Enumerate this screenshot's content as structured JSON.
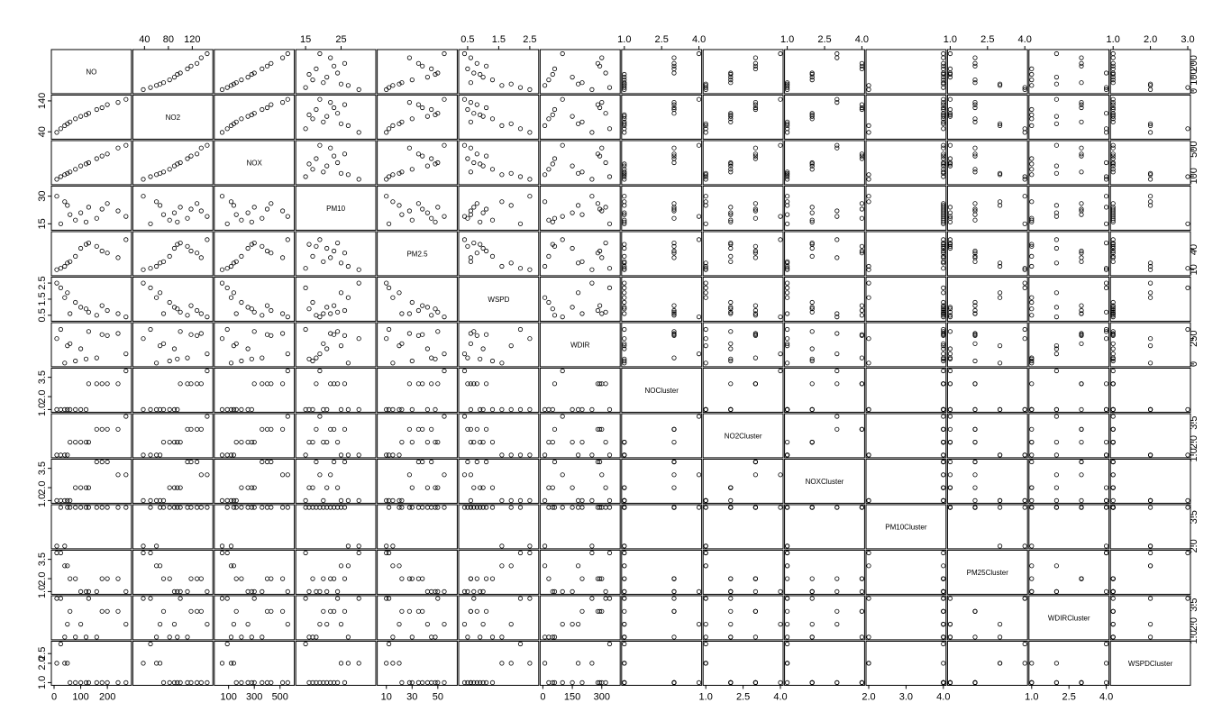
{
  "chart_data": {
    "type": "scatter",
    "title": "",
    "variables": [
      {
        "name": "NO",
        "min": 0,
        "max": 280,
        "ticks": [
          0,
          100,
          200
        ],
        "tick_labels": [
          "0",
          "100",
          "200"
        ]
      },
      {
        "name": "NO2",
        "min": 25,
        "max": 150,
        "ticks": [
          40,
          80,
          120
        ],
        "tick_labels": [
          "40",
          "80",
          "120"
        ]
      },
      {
        "name": "NOX",
        "min": 10,
        "max": 590,
        "ticks": [
          100,
          300,
          500
        ],
        "tick_labels": [
          "100",
          "300",
          "500"
        ]
      },
      {
        "name": "PM10",
        "min": 13,
        "max": 34,
        "ticks": [
          15,
          25
        ],
        "tick_labels": [
          "15",
          "25"
        ]
      },
      {
        "name": "PM2.5",
        "min": 5,
        "max": 63,
        "ticks": [
          10,
          30,
          50
        ],
        "tick_labels": [
          "10",
          "30",
          "50"
        ]
      },
      {
        "name": "WSPD",
        "min": 0.3,
        "max": 2.7,
        "ticks": [
          0.5,
          1.5,
          2.5
        ],
        "tick_labels": [
          "0.5",
          "1.5",
          "2.5"
        ]
      },
      {
        "name": "WDIR",
        "min": 0,
        "max": 380,
        "ticks": [
          0,
          150,
          300
        ],
        "tick_labels": [
          "0",
          "150",
          "300"
        ]
      },
      {
        "name": "NOCluster",
        "min": 1,
        "max": 4,
        "ticks": [
          1.0,
          2.5,
          4.0
        ],
        "tick_labels": [
          "1.0",
          "2.5",
          "4.0"
        ]
      },
      {
        "name": "NO2Cluster",
        "min": 1,
        "max": 4,
        "ticks": [
          1.0,
          2.5,
          4.0
        ],
        "tick_labels": [
          "1.0",
          "2.5",
          "4.0"
        ]
      },
      {
        "name": "NOXCluster",
        "min": 1,
        "max": 4,
        "ticks": [
          1.0,
          2.5,
          4.0
        ],
        "tick_labels": [
          "1.0",
          "2.5",
          "4.0"
        ]
      },
      {
        "name": "PM10Cluster",
        "min": 2,
        "max": 4,
        "ticks": [
          2.0,
          3.0,
          4.0
        ],
        "tick_labels": [
          "2.0",
          "3.0",
          "4.0"
        ]
      },
      {
        "name": "PM25Cluster",
        "min": 1,
        "max": 4,
        "ticks": [
          1.0,
          2.5,
          4.0
        ],
        "tick_labels": [
          "1.0",
          "2.5",
          "4.0"
        ]
      },
      {
        "name": "WDIRCluster",
        "min": 1,
        "max": 4,
        "ticks": [
          1.0,
          2.5,
          4.0
        ],
        "tick_labels": [
          "1.0",
          "2.5",
          "4.0"
        ]
      },
      {
        "name": "WSPDCluster",
        "min": 1,
        "max": 3,
        "ticks": [
          1.0,
          2.0,
          3.0
        ],
        "tick_labels": [
          "1.0",
          "2.0",
          "3.0"
        ]
      }
    ],
    "right_axis_labels": [
      {
        "var": "NO",
        "ticks": [
          0,
          100,
          200
        ],
        "tick_labels": [
          "0",
          "100",
          "200"
        ]
      },
      {
        "var": "NOX",
        "ticks": [
          100,
          500
        ],
        "tick_labels": [
          "100",
          "500"
        ]
      },
      {
        "var": "PM2.5",
        "ticks": [
          10,
          40
        ],
        "tick_labels": [
          "10",
          "40"
        ]
      },
      {
        "var": "WDIR",
        "ticks": [
          0,
          250
        ],
        "tick_labels": [
          "0",
          "250"
        ]
      },
      {
        "var": "NO2Cluster",
        "ticks": [
          1.0,
          2.0,
          3.5
        ],
        "tick_labels": [
          "1.0",
          "2.0",
          "3.5"
        ]
      },
      {
        "var": "PM10Cluster",
        "ticks": [
          2.0,
          3.5
        ],
        "tick_labels": [
          "2.0",
          "3.5"
        ]
      },
      {
        "var": "WDIRCluster",
        "ticks": [
          1.0,
          2.0,
          3.5
        ],
        "tick_labels": [
          "1.0",
          "2.0",
          "3.5"
        ]
      }
    ],
    "left_axis_labels": [
      {
        "var": "NO2",
        "ticks": [
          40,
          140
        ],
        "tick_labels": [
          "40",
          "140"
        ]
      },
      {
        "var": "PM10",
        "ticks": [
          15,
          30
        ],
        "tick_labels": [
          "15",
          "30"
        ]
      },
      {
        "var": "WSPD",
        "ticks": [
          0.5,
          1.5,
          2.5
        ],
        "tick_labels": [
          "0.5",
          "1.5",
          "2.5"
        ]
      },
      {
        "var": "NOCluster",
        "ticks": [
          1.0,
          2.0,
          3.5
        ],
        "tick_labels": [
          "1.0",
          "2.0",
          "3.5"
        ]
      },
      {
        "var": "NOXCluster",
        "ticks": [
          1.0,
          2.0,
          3.5
        ],
        "tick_labels": [
          "1.0",
          "2.0",
          "3.5"
        ]
      },
      {
        "var": "PM25Cluster",
        "ticks": [
          1.0,
          2.0,
          3.5
        ],
        "tick_labels": [
          "1.0",
          "2.0",
          "3.5"
        ]
      },
      {
        "var": "WSPDCluster",
        "ticks": [
          1.0,
          2.0,
          2.5
        ],
        "tick_labels": [
          "1.0",
          "2.0",
          "2.5"
        ]
      }
    ],
    "observations": [
      {
        "NO": 240,
        "NO2": 135,
        "NOX": 520,
        "PM10": 22,
        "PM2.5": 28,
        "WSPD": 0.6,
        "WDIR": 300,
        "NOCluster": 3,
        "NO2Cluster": 3,
        "NOXCluster": 3,
        "PM10Cluster": 4,
        "PM25Cluster": 2,
        "WDIRCluster": 3,
        "WSPDCluster": 1
      },
      {
        "NO": 200,
        "NO2": 128,
        "NOX": 430,
        "PM10": 26,
        "PM2.5": 35,
        "WSPD": 0.8,
        "WDIR": 280,
        "NOCluster": 3,
        "NO2Cluster": 3,
        "NOXCluster": 4,
        "PM10Cluster": 4,
        "PM25Cluster": 2,
        "WDIRCluster": 3,
        "WSPDCluster": 1
      },
      {
        "NO": 160,
        "NO2": 112,
        "NOX": 360,
        "PM10": 18,
        "PM2.5": 45,
        "WSPD": 0.5,
        "WDIR": 60,
        "NOCluster": 3,
        "NO2Cluster": 3,
        "NOXCluster": 4,
        "PM10Cluster": 4,
        "PM25Cluster": 1,
        "WDIRCluster": 1,
        "WSPDCluster": 1
      },
      {
        "NO": 130,
        "NO2": 100,
        "NOX": 300,
        "PM10": 24,
        "PM2.5": 50,
        "WSPD": 0.7,
        "WDIR": 320,
        "NOCluster": 3,
        "NO2Cluster": 2,
        "NOXCluster": 2,
        "PM10Cluster": 4,
        "PM25Cluster": 1,
        "WDIRCluster": 4,
        "WSPDCluster": 1
      },
      {
        "NO": 100,
        "NO2": 90,
        "NOX": 250,
        "PM10": 21,
        "PM2.5": 42,
        "WSPD": 1.0,
        "WDIR": 150,
        "NOCluster": 1,
        "NO2Cluster": 2,
        "NOXCluster": 2,
        "PM10Cluster": 4,
        "PM25Cluster": 1,
        "WDIRCluster": 2,
        "WSPDCluster": 1
      },
      {
        "NO": 80,
        "NO2": 82,
        "NOX": 200,
        "PM10": 17,
        "PM2.5": 30,
        "WSPD": 1.3,
        "WDIR": 30,
        "NOCluster": 1,
        "NO2Cluster": 2,
        "NOXCluster": 2,
        "PM10Cluster": 4,
        "PM25Cluster": 2,
        "WDIRCluster": 1,
        "WSPDCluster": 1
      },
      {
        "NO": 60,
        "NO2": 72,
        "NOX": 160,
        "PM10": 20,
        "PM2.5": 22,
        "WSPD": 0.6,
        "WDIR": 200,
        "NOCluster": 1,
        "NO2Cluster": 2,
        "NOXCluster": 1,
        "PM10Cluster": 4,
        "PM25Cluster": 2,
        "WDIRCluster": 3,
        "WSPDCluster": 1
      },
      {
        "NO": 40,
        "NO2": 60,
        "NOX": 120,
        "PM10": 27,
        "PM2.5": 15,
        "WSPD": 1.6,
        "WDIR": 10,
        "NOCluster": 1,
        "NO2Cluster": 1,
        "NOXCluster": 1,
        "PM10Cluster": 2,
        "PM25Cluster": 3,
        "WDIRCluster": 1,
        "WSPDCluster": 2
      },
      {
        "NO": 25,
        "NO2": 50,
        "NOX": 90,
        "PM10": 15,
        "PM2.5": 12,
        "WSPD": 2.2,
        "WDIR": 340,
        "NOCluster": 1,
        "NO2Cluster": 1,
        "NOXCluster": 1,
        "PM10Cluster": 4,
        "PM25Cluster": 4,
        "WDIRCluster": 4,
        "WSPDCluster": 3
      },
      {
        "NO": 10,
        "NO2": 38,
        "NOX": 50,
        "PM10": 30,
        "PM2.5": 10,
        "WSPD": 2.5,
        "WDIR": 250,
        "NOCluster": 1,
        "NO2Cluster": 1,
        "NOXCluster": 1,
        "PM10Cluster": 2,
        "PM25Cluster": 4,
        "WDIRCluster": 4,
        "WSPDCluster": 2
      },
      {
        "NO": 270,
        "NO2": 145,
        "NOX": 560,
        "PM10": 19,
        "PM2.5": 55,
        "WSPD": 0.4,
        "WDIR": 100,
        "NOCluster": 4,
        "NO2Cluster": 4,
        "NOXCluster": 3,
        "PM10Cluster": 4,
        "PM25Cluster": 1,
        "WDIRCluster": 2,
        "WSPDCluster": 1
      },
      {
        "NO": 180,
        "NO2": 118,
        "NOX": 400,
        "PM10": 23,
        "PM2.5": 38,
        "WSPD": 1.1,
        "WDIR": 290,
        "NOCluster": 3,
        "NO2Cluster": 3,
        "NOXCluster": 4,
        "PM10Cluster": 4,
        "PM25Cluster": 2,
        "WDIRCluster": 3,
        "WSPDCluster": 1
      },
      {
        "NO": 120,
        "NO2": 95,
        "NOX": 280,
        "PM10": 16,
        "PM2.5": 48,
        "WSPD": 0.9,
        "WDIR": 50,
        "NOCluster": 1,
        "NO2Cluster": 2,
        "NOXCluster": 2,
        "PM10Cluster": 4,
        "PM25Cluster": 1,
        "WDIRCluster": 1,
        "WSPDCluster": 1
      },
      {
        "NO": 50,
        "NO2": 66,
        "NOX": 140,
        "PM10": 25,
        "PM2.5": 20,
        "WSPD": 1.9,
        "WDIR": 180,
        "NOCluster": 1,
        "NO2Cluster": 1,
        "NOXCluster": 1,
        "PM10Cluster": 4,
        "PM25Cluster": 3,
        "WDIRCluster": 2,
        "WSPDCluster": 2
      }
    ]
  }
}
